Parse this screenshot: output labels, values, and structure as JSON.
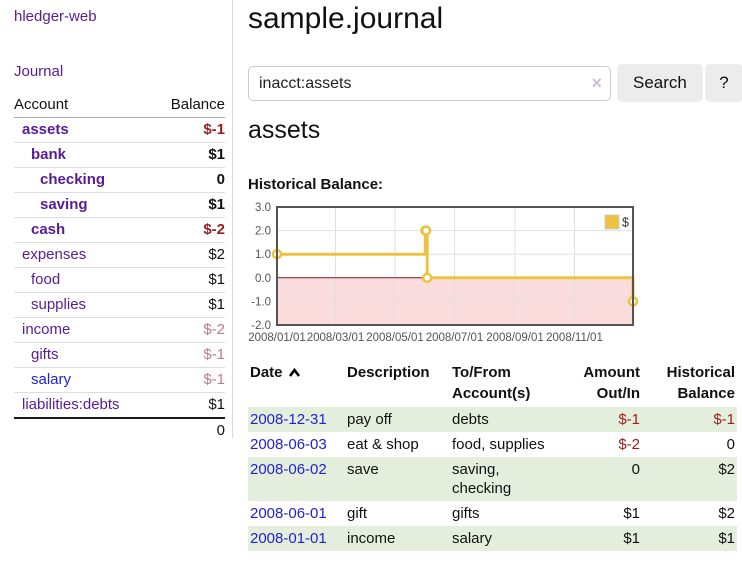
{
  "app": {
    "brand": "hledger-web"
  },
  "sidebar": {
    "nav": {
      "journal_label": "Journal"
    },
    "accounts_table": {
      "headers": {
        "account": "Account",
        "balance": "Balance"
      },
      "rows": [
        {
          "name": "assets",
          "indent": 0,
          "bold": true,
          "balance": "$-1",
          "balance_style": "negative"
        },
        {
          "name": "bank",
          "indent": 1,
          "bold": true,
          "balance": "$1",
          "balance_style": "normal"
        },
        {
          "name": "checking",
          "indent": 2,
          "bold": true,
          "balance": "0",
          "balance_style": "normal"
        },
        {
          "name": "saving",
          "indent": 2,
          "bold": true,
          "balance": "$1",
          "balance_style": "normal"
        },
        {
          "name": "cash",
          "indent": 1,
          "bold": true,
          "balance": "$-2",
          "balance_style": "negative"
        },
        {
          "name": "expenses",
          "indent": 0,
          "bold": false,
          "balance": "$2",
          "balance_style": "normal"
        },
        {
          "name": "food",
          "indent": 1,
          "bold": false,
          "balance": "$1",
          "balance_style": "normal"
        },
        {
          "name": "supplies",
          "indent": 1,
          "bold": false,
          "balance": "$1",
          "balance_style": "normal"
        },
        {
          "name": "income",
          "indent": 0,
          "bold": false,
          "balance": "$-2",
          "balance_style": "negative-muted"
        },
        {
          "name": "gifts",
          "indent": 1,
          "bold": false,
          "balance": "$-1",
          "balance_style": "negative-muted"
        },
        {
          "name": "salary",
          "indent": 1,
          "bold": false,
          "balance": "$-1",
          "balance_style": "negative-muted",
          "link_style": "unvisited"
        },
        {
          "name": "liabilities:debts",
          "indent": 0,
          "bold": false,
          "balance": "$1",
          "balance_style": "normal"
        }
      ],
      "total": "0"
    }
  },
  "header": {
    "title": "sample.journal"
  },
  "search": {
    "value": "inacct:assets",
    "clear_icon": "×",
    "button_label": "Search",
    "help_label": "?"
  },
  "account_page": {
    "heading": "assets",
    "chart_label": "Historical Balance:"
  },
  "chart_data": {
    "type": "line",
    "title": "Historical Balance:",
    "series": [
      {
        "name": "$",
        "color": "#edc240",
        "step": true,
        "points": [
          [
            "2008-01-01",
            1
          ],
          [
            "2008-06-01",
            2
          ],
          [
            "2008-06-02",
            2
          ],
          [
            "2008-06-03",
            0
          ],
          [
            "2008-12-31",
            -1
          ]
        ]
      }
    ],
    "xlim": [
      "2008-01-01",
      "2008-12-31"
    ],
    "ylim": [
      -2,
      3
    ],
    "x_tick_dates": [
      "2008-01-01",
      "2008-03-01",
      "2008-05-01",
      "2008-07-01",
      "2008-09-01",
      "2008-11-01"
    ],
    "x_tick_labels": [
      "2008/01/01",
      "2008/03/01",
      "2008/05/01",
      "2008/07/01",
      "2008/09/01",
      "2008/11/01"
    ],
    "y_tick_labels": [
      "3.0",
      "2.0",
      "1.0",
      "0.0",
      "-1.0",
      "-2.0"
    ],
    "grid": true,
    "legend_position": "top-right",
    "negative_region_color": "#fbdcdc",
    "zero_line_color": "#8b1a1a",
    "grid_color": "#e0e0e0",
    "border_color": "#545454",
    "tick_label_color": "#545454"
  },
  "transactions": {
    "headers": {
      "date": "Date",
      "description": "Description",
      "accounts": "To/From Account(s)",
      "amount": "Amount Out/In",
      "balance": "Historical Balance"
    },
    "sort": {
      "column": "Date",
      "direction": "ascending"
    },
    "rows": [
      {
        "date": "2008-12-31",
        "description": "pay off",
        "accounts": "debts",
        "amount": "$-1",
        "amount_style": "negative",
        "balance": "$-1",
        "balance_style": "negative"
      },
      {
        "date": "2008-06-03",
        "description": "eat & shop",
        "accounts": "food, supplies",
        "amount": "$-2",
        "amount_style": "negative",
        "balance": "0",
        "balance_style": "normal"
      },
      {
        "date": "2008-06-02",
        "description": "save",
        "accounts": "saving, checking",
        "amount": "0",
        "amount_style": "normal",
        "balance": "$2",
        "balance_style": "normal"
      },
      {
        "date": "2008-06-01",
        "description": "gift",
        "accounts": "gifts",
        "amount": "$1",
        "amount_style": "normal",
        "balance": "$2",
        "balance_style": "normal"
      },
      {
        "date": "2008-01-01",
        "description": "income",
        "accounts": "salary",
        "amount": "$1",
        "amount_style": "normal",
        "balance": "$1",
        "balance_style": "normal"
      }
    ]
  },
  "colors": {
    "negative": "#9e1c1c",
    "negative_muted": "#c1798c",
    "link_visited": "#571c96",
    "link": "#2222d2",
    "row_stripe": "#e3efdc",
    "series": "#edc240"
  }
}
